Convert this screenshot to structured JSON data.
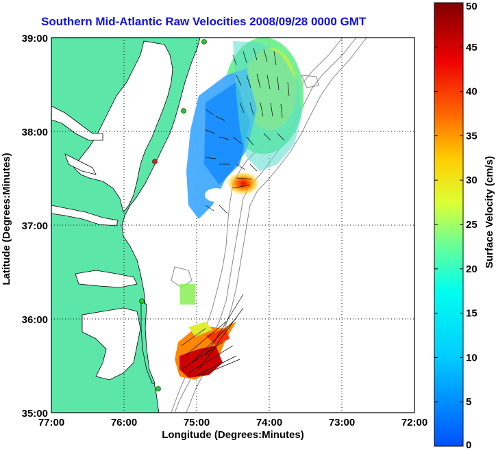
{
  "title": "Southern Mid-Atlantic Raw Velocities 2008/09/28 0000 GMT",
  "axes": {
    "xlabel": "Longitude (Degrees:Minutes)",
    "ylabel": "Latitude (Degrees:Minutes)",
    "x_ticks": [
      "77:00",
      "76:00",
      "75:00",
      "74:00",
      "73:00",
      "72:00"
    ],
    "y_ticks": [
      "39:00",
      "38:00",
      "37:00",
      "36:00",
      "35:00"
    ]
  },
  "colorbar": {
    "label": "Surface Velocity (cm/s)",
    "ticks": [
      "0",
      "5",
      "10",
      "15",
      "20",
      "25",
      "30",
      "35",
      "40",
      "45",
      "50"
    ],
    "range": [
      0,
      50
    ]
  },
  "colors": {
    "land": "#5ce6a8",
    "title": "#1010e0",
    "station_green": "#22cc22",
    "station_red": "#dd2222",
    "bathymetry": "#888888"
  }
}
